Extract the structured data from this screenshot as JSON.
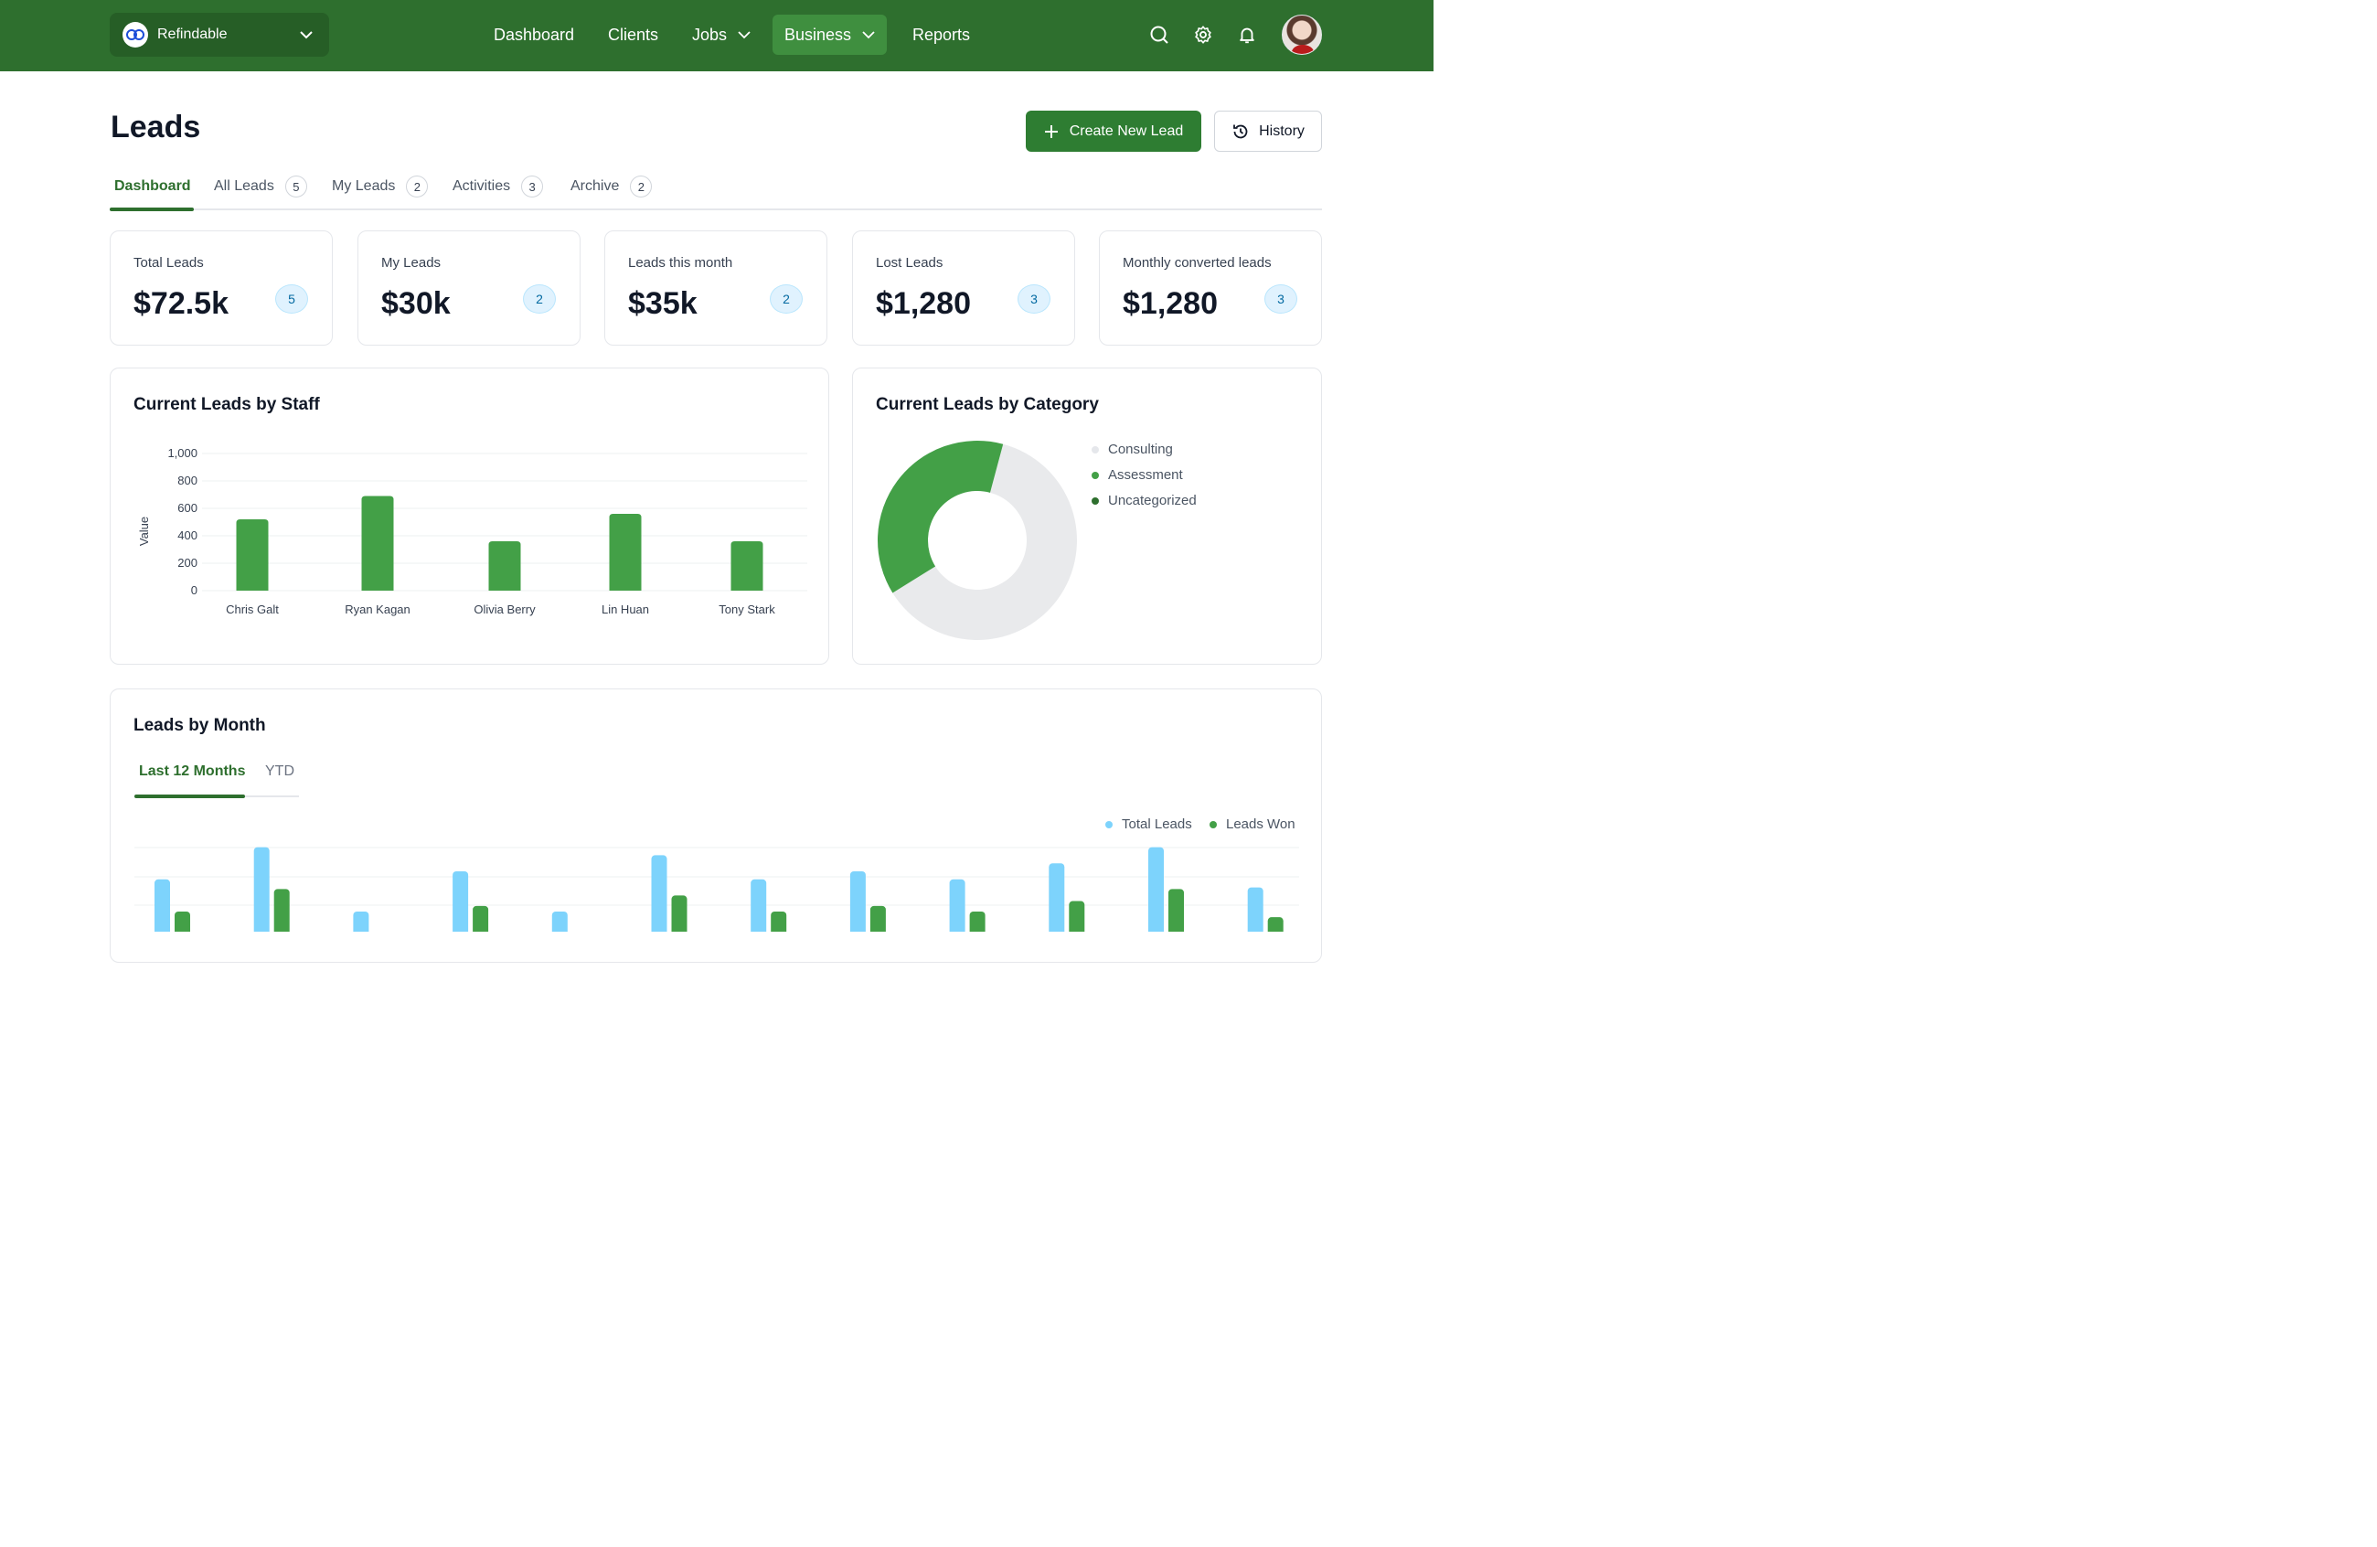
{
  "org": {
    "name": "Refindable"
  },
  "nav": {
    "items": [
      {
        "label": "Dashboard"
      },
      {
        "label": "Clients"
      },
      {
        "label": "Jobs"
      },
      {
        "label": "Business"
      },
      {
        "label": "Reports"
      }
    ],
    "active": "Business"
  },
  "icons": {
    "search": "search-icon",
    "settings": "gear-icon",
    "notifications": "bell-icon",
    "org_chevron": "chevron-down-icon"
  },
  "page": {
    "title": "Leads",
    "create_label": "Create New Lead",
    "history_label": "History"
  },
  "tabs": [
    {
      "label": "Dashboard",
      "count": ""
    },
    {
      "label": "All Leads",
      "count": "5"
    },
    {
      "label": "My Leads",
      "count": "2"
    },
    {
      "label": "Activities",
      "count": "3"
    },
    {
      "label": "Archive",
      "count": "2"
    }
  ],
  "stats": [
    {
      "label": "Total Leads",
      "value": "$72.5k",
      "badge": "5"
    },
    {
      "label": "My Leads",
      "value": "$30k",
      "badge": "2"
    },
    {
      "label": "Leads this month",
      "value": "$35k",
      "badge": "2"
    },
    {
      "label": "Lost Leads",
      "value": "$1,280",
      "badge": "3"
    },
    {
      "label": "Monthly converted leads",
      "value": "$1,280",
      "badge": "3"
    }
  ],
  "colors": {
    "brand": "#2e6f2e",
    "bar_green": "#43a047",
    "bar_blue": "#7dd3fc",
    "donut_empty": "#e9eaec",
    "badge_bg": "#e0f2fe"
  },
  "staff_chart": {
    "title": "Current Leads by Staff",
    "ylabel": "Value"
  },
  "category_chart": {
    "title": "Current Leads by Category",
    "legend": [
      {
        "label": "Consulting",
        "color": "#e5e7eb"
      },
      {
        "label": "Assessment",
        "color": "#43a047"
      },
      {
        "label": "Uncategorized",
        "color": "#2e6f2e"
      }
    ]
  },
  "month_chart": {
    "title": "Leads by Month",
    "subtabs": [
      {
        "label": "Last 12 Months"
      },
      {
        "label": "YTD"
      }
    ],
    "legend": [
      {
        "label": "Total Leads"
      },
      {
        "label": "Leads Won"
      }
    ]
  },
  "chart_data": [
    {
      "type": "bar",
      "title": "Current Leads by Staff",
      "xlabel": "",
      "ylabel": "Value",
      "categories": [
        "Chris Galt",
        "Ryan Kagan",
        "Olivia Berry",
        "Lin Huan",
        "Tony Stark"
      ],
      "values": [
        520,
        690,
        360,
        560,
        360
      ],
      "yticks": [
        "0",
        "200",
        "400",
        "600",
        "800",
        "1,000"
      ],
      "ylim": [
        0,
        1000
      ],
      "grid": true
    },
    {
      "type": "pie",
      "title": "Current Leads by Category",
      "categories": [
        "Consulting",
        "Assessment",
        "Uncategorized"
      ],
      "values": [
        62,
        38,
        0
      ],
      "legend_position": "right"
    },
    {
      "type": "bar",
      "title": "Leads by Month",
      "legend_position": "top-right",
      "series": [
        {
          "name": "Total Leads",
          "values": [
            65,
            105,
            25,
            75,
            25,
            95,
            65,
            75,
            65,
            85,
            105,
            55
          ]
        },
        {
          "name": "Leads Won",
          "values": [
            25,
            53,
            0,
            32,
            0,
            45,
            25,
            32,
            25,
            38,
            53,
            18
          ]
        }
      ],
      "grid": true
    }
  ]
}
